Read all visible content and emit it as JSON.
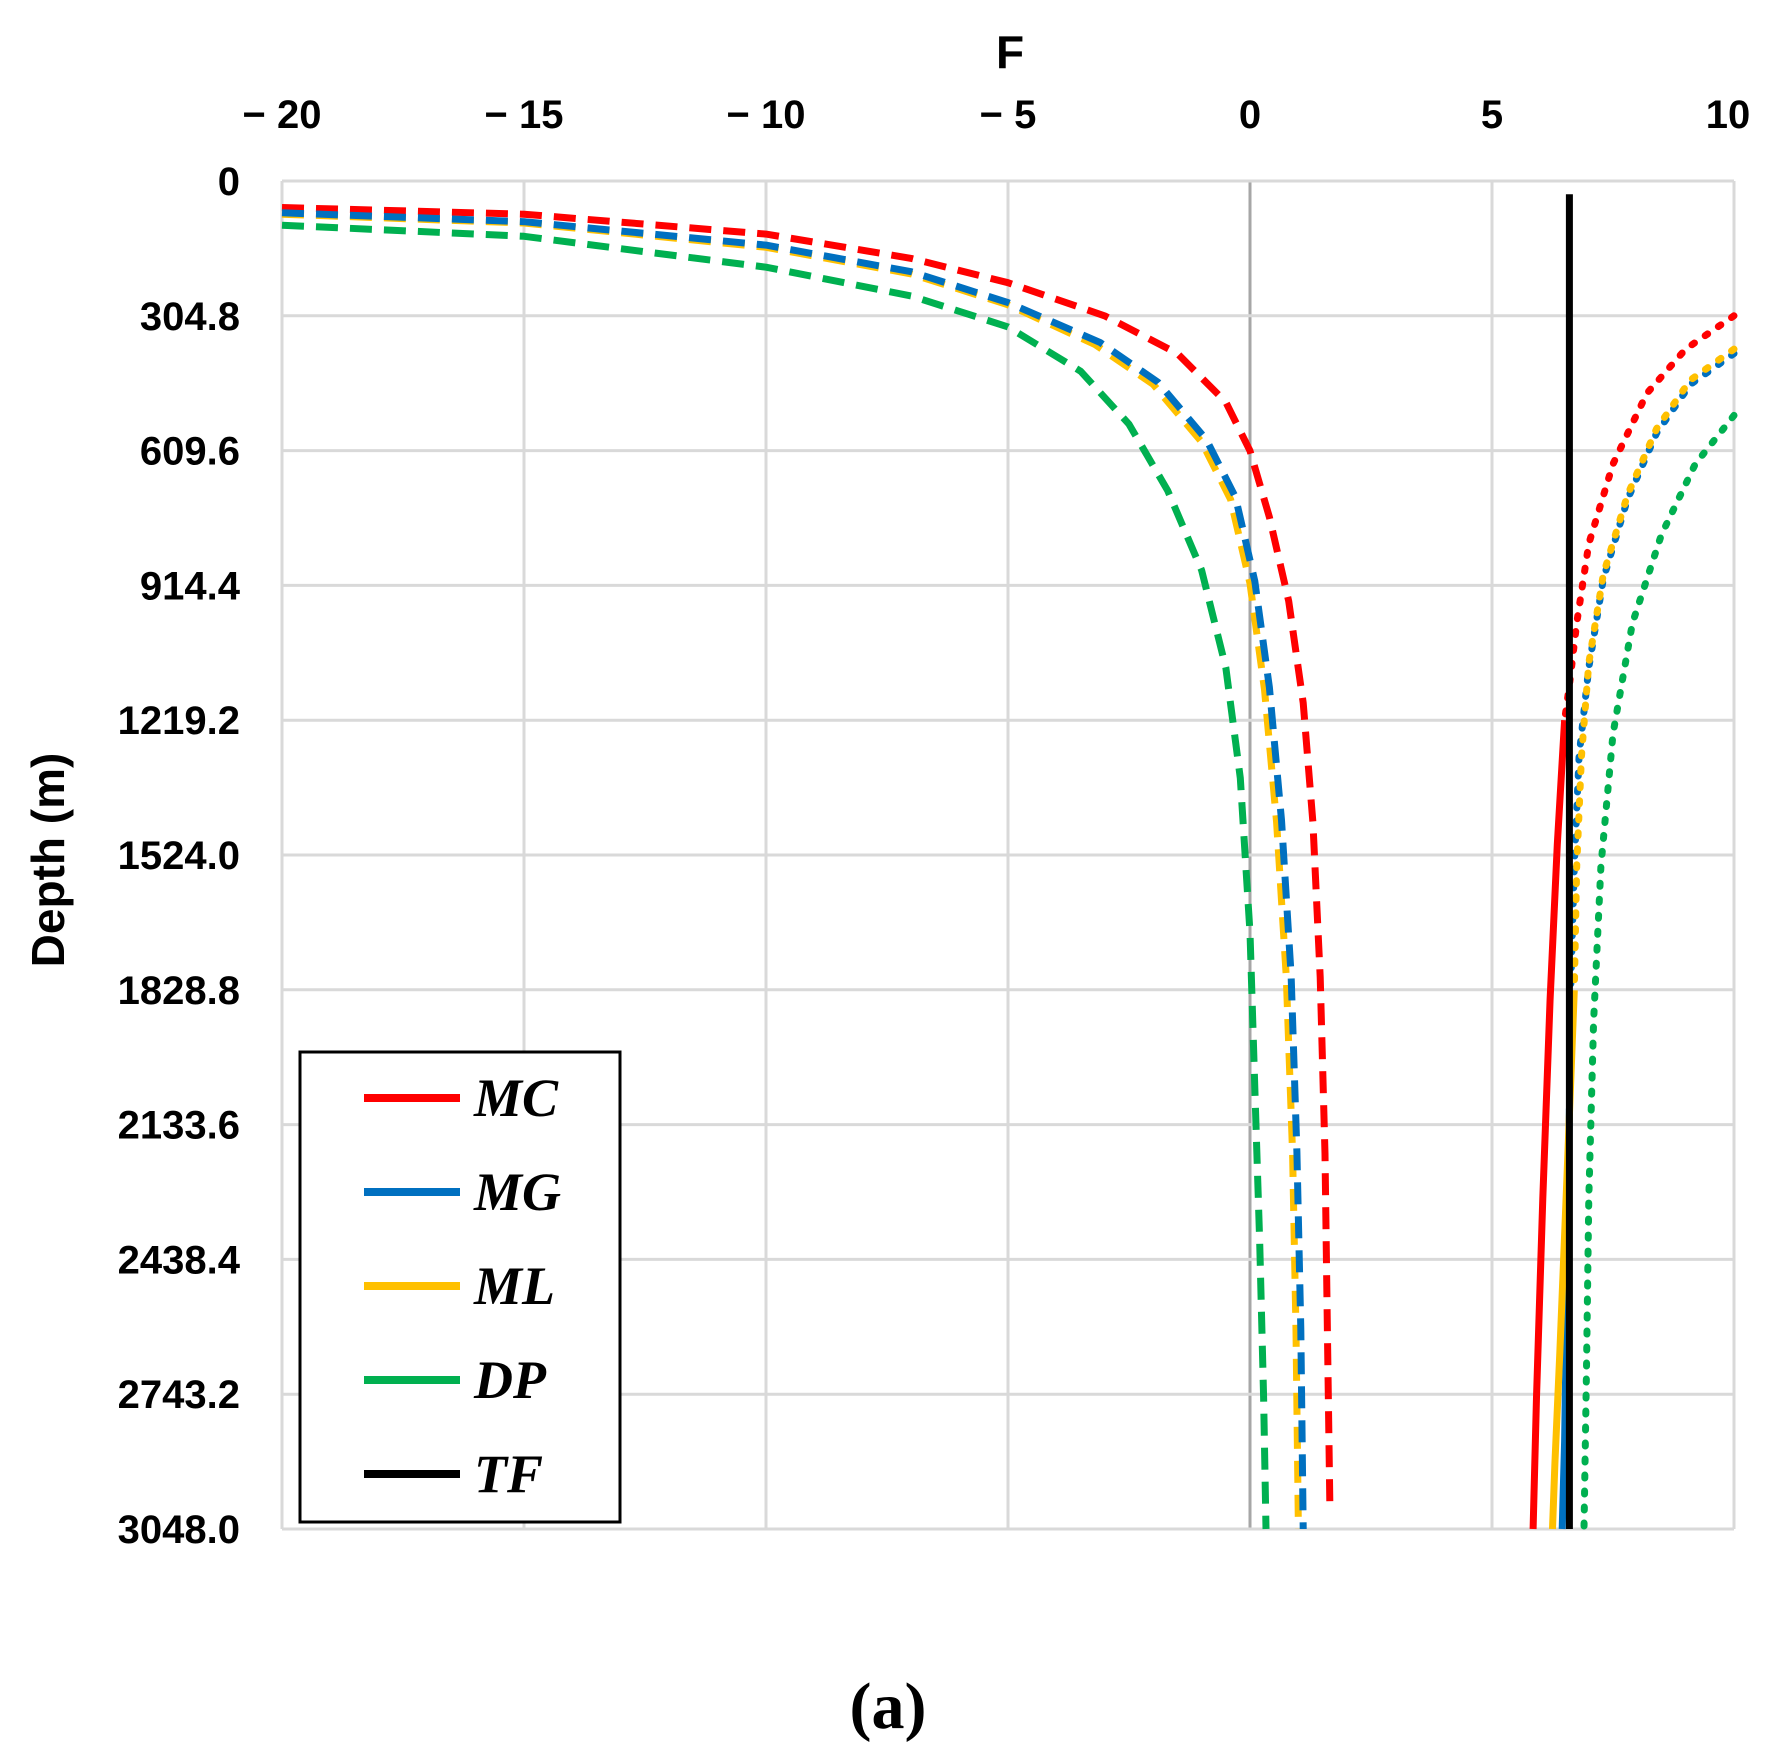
{
  "chart_data": {
    "type": "line",
    "title": "",
    "caption": "(a)",
    "xlabel": "F",
    "ylabel": "Depth (m)",
    "xlim": [
      -20,
      10
    ],
    "ylim": [
      0,
      3048.0
    ],
    "y_inverted": true,
    "x_axis_position": "top",
    "x_ticks": [
      -20,
      -15,
      -10,
      -5,
      0,
      5,
      10
    ],
    "x_tick_labels": [
      "− 20",
      "− 15",
      "− 10",
      "− 5",
      "0",
      "5",
      "10"
    ],
    "y_ticks": [
      0,
      304.8,
      609.6,
      914.4,
      1219.2,
      1524.0,
      1828.8,
      2133.6,
      2438.4,
      2743.2,
      3048.0
    ],
    "y_tick_labels": [
      "0",
      "304.8",
      "609.6",
      "914.4",
      "1219.2",
      "1524.0",
      "1828.8",
      "2133.6",
      "2438.4",
      "2743.2",
      "3048.0"
    ],
    "grid": true,
    "legend_position": "bottom-left",
    "legend": [
      {
        "label": "MC",
        "color": "#ff0000"
      },
      {
        "label": "MG",
        "color": "#0070c0"
      },
      {
        "label": "ML",
        "color": "#ffc000"
      },
      {
        "label": "DP",
        "color": "#00b050"
      },
      {
        "label": "TF",
        "color": "#000000"
      }
    ],
    "series": [
      {
        "name": "MC",
        "style": "dashed",
        "color": "#ff0000",
        "x": [
          -20,
          -15,
          -10,
          -7,
          -5,
          -3,
          -1.5,
          -0.5,
          0,
          0.4,
          0.8,
          1.1,
          1.3,
          1.45,
          1.55,
          1.6,
          1.65
        ],
        "y": [
          60,
          75,
          120,
          175,
          230,
          305,
          390,
          500,
          610,
          760,
          950,
          1180,
          1450,
          1800,
          2200,
          2600,
          3000
        ]
      },
      {
        "name": "ML",
        "style": "dashed",
        "color": "#ffc000",
        "x": [
          -20,
          -15,
          -10,
          -7,
          -5,
          -3.2,
          -2,
          -1,
          -0.4,
          0,
          0.3,
          0.55,
          0.75,
          0.88,
          0.95,
          1.0
        ],
        "y": [
          75,
          95,
          150,
          210,
          280,
          370,
          460,
          590,
          720,
          910,
          1150,
          1450,
          1800,
          2200,
          2600,
          3048
        ]
      },
      {
        "name": "MG",
        "style": "dashed",
        "color": "#0070c0",
        "x": [
          -20,
          -15,
          -10,
          -7,
          -5,
          -3.1,
          -1.9,
          -0.9,
          -0.3,
          0.1,
          0.4,
          0.65,
          0.85,
          0.97,
          1.05,
          1.1
        ],
        "y": [
          72,
          92,
          145,
          205,
          275,
          365,
          455,
          585,
          715,
          905,
          1145,
          1445,
          1795,
          2195,
          2595,
          3048
        ]
      },
      {
        "name": "DP",
        "style": "dashed",
        "color": "#00b050",
        "x": [
          -20,
          -15,
          -10,
          -7,
          -5,
          -3.5,
          -2.5,
          -1.7,
          -1,
          -0.5,
          -0.2,
          0,
          0.1,
          0.2,
          0.28,
          0.33
        ],
        "y": [
          100,
          125,
          195,
          260,
          330,
          430,
          550,
          700,
          880,
          1100,
          1350,
          1700,
          2050,
          2400,
          2750,
          3048
        ]
      },
      {
        "name": "MC",
        "style": "dotted",
        "color": "#ff0000",
        "x": [
          10,
          9,
          8.2,
          7.5,
          7.0,
          6.75,
          6.6,
          6.5
        ],
        "y": [
          304.8,
          380,
          480,
          640,
          820,
          1000,
          1140,
          1219.2
        ]
      },
      {
        "name": "MG",
        "style": "dotted",
        "color": "#0070c0",
        "x": [
          10,
          9.1,
          8.4,
          7.8,
          7.3,
          7.0,
          6.8,
          6.7,
          6.62,
          6.6
        ],
        "y": [
          390,
          460,
          570,
          720,
          900,
          1100,
          1300,
          1550,
          1850,
          2100
        ]
      },
      {
        "name": "ML",
        "style": "dotted",
        "color": "#ffc000",
        "x": [
          10,
          9.1,
          8.4,
          7.8,
          7.3,
          7.0,
          6.85,
          6.75,
          6.7
        ],
        "y": [
          380,
          450,
          560,
          710,
          890,
          1090,
          1300,
          1550,
          1830
        ]
      },
      {
        "name": "DP",
        "style": "dotted",
        "color": "#00b050",
        "x": [
          10,
          9.2,
          8.5,
          7.9,
          7.5,
          7.25,
          7.1,
          7.0,
          6.95,
          6.9
        ],
        "y": [
          530,
          640,
          800,
          1000,
          1250,
          1550,
          1900,
          2300,
          2700,
          3048
        ]
      },
      {
        "name": "MC",
        "style": "solid",
        "color": "#ff0000",
        "x": [
          6.5,
          6.35,
          6.2,
          6.05,
          5.92,
          5.85
        ],
        "y": [
          1219.2,
          1500,
          1850,
          2300,
          2750,
          3048
        ]
      },
      {
        "name": "MG",
        "style": "solid",
        "color": "#0070c0",
        "x": [
          6.6,
          6.55,
          6.5,
          6.45
        ],
        "y": [
          2100,
          2500,
          2850,
          3048
        ]
      },
      {
        "name": "ML",
        "style": "solid",
        "color": "#ffc000",
        "x": [
          6.7,
          6.55,
          6.4,
          6.3,
          6.25
        ],
        "y": [
          1830,
          2250,
          2650,
          2900,
          3048
        ]
      },
      {
        "name": "TF",
        "style": "solid",
        "color": "#000000",
        "x": [
          6.6,
          6.6
        ],
        "y": [
          30,
          3048
        ]
      }
    ]
  }
}
